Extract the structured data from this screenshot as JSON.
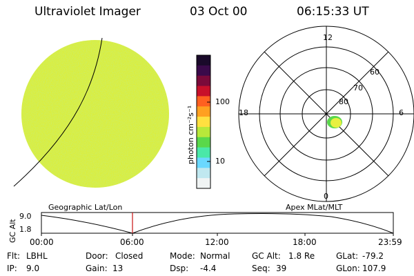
{
  "header": {
    "title": "Ultraviolet Imager",
    "date": "03 Oct 00",
    "time": "06:15:33 UT"
  },
  "colorbar": {
    "unit_label": "photon cm⁻²s⁻¹",
    "ticks": [
      "100",
      "10"
    ],
    "colors": [
      "#1a0a2a",
      "#3a0a4a",
      "#7a0a3a",
      "#c8102a",
      "#ff6020",
      "#ffa020",
      "#ffe040",
      "#b8e83a",
      "#5ad84a",
      "#4ae8a8",
      "#6ad8ff",
      "#c0e8f0",
      "#f0f4f4"
    ]
  },
  "polar": {
    "top": "12",
    "bottom": "0",
    "left": "18",
    "right": "6",
    "rings": [
      "60",
      "70",
      "80"
    ]
  },
  "orbit": {
    "left_label": "Geographic Lat/Lon",
    "right_label": "Apex MLat/MLT",
    "axis_title": "GC Alt",
    "y_ticks": [
      "9.0",
      "1.8"
    ],
    "x_ticks": [
      "00:00",
      "06:00",
      "12:00",
      "18:00",
      "23:59"
    ]
  },
  "footer": {
    "row1": [
      {
        "key": "Flt:",
        "value": "LBHL"
      },
      {
        "key": "Door:",
        "value": "Closed"
      },
      {
        "key": "Mode:",
        "value": "Normal"
      },
      {
        "key": "GC Alt:",
        "value": "1.8 Re"
      },
      {
        "key": "GLat:",
        "value": "-79.2"
      }
    ],
    "row2": [
      {
        "key": "IP:",
        "value": "9.0"
      },
      {
        "key": "Gain:",
        "value": "13"
      },
      {
        "key": "Dsp:",
        "value": "-4.4"
      },
      {
        "key": "Seq:",
        "value": "39"
      },
      {
        "key": "GLon:",
        "value": "107.9"
      }
    ]
  }
}
